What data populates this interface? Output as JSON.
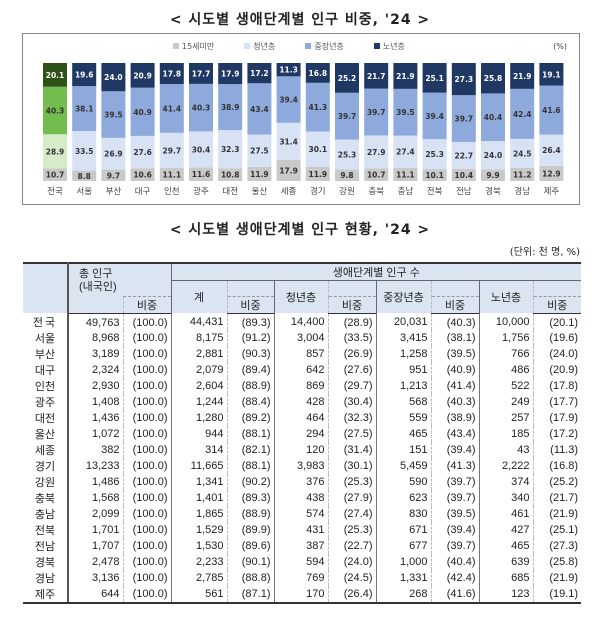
{
  "chart_title": "< 시도별 생애단계별 인구 비중, '24 >",
  "table_title": "< 시도별 생애단계별 인구 현황, '24 >",
  "chart_data": {
    "type": "bar",
    "stacked": true,
    "unit_label": "(%)",
    "categories": [
      "전국",
      "서울",
      "부산",
      "대구",
      "인천",
      "광주",
      "대전",
      "울산",
      "세종",
      "경기",
      "강원",
      "충북",
      "충남",
      "전북",
      "전남",
      "경북",
      "경남",
      "제주"
    ],
    "series": [
      {
        "name": "15세미만",
        "color": "#c9c9c9",
        "highlight": "#c9c9c9",
        "values": [
          10.7,
          8.8,
          9.7,
          10.6,
          11.1,
          11.6,
          10.8,
          11.9,
          17.9,
          11.9,
          9.8,
          10.7,
          11.1,
          10.1,
          10.4,
          9.9,
          11.2,
          12.9
        ]
      },
      {
        "name": "청년층",
        "color": "#d7e2f5",
        "highlight": "#d6ebc8",
        "values": [
          28.9,
          33.5,
          26.9,
          27.6,
          29.7,
          30.4,
          32.3,
          27.5,
          31.4,
          30.1,
          25.3,
          27.9,
          27.4,
          25.3,
          22.7,
          24.0,
          24.5,
          26.4
        ]
      },
      {
        "name": "중장년층",
        "color": "#8eaadd",
        "highlight": "#72bd4e",
        "values": [
          40.3,
          38.1,
          39.5,
          40.9,
          41.4,
          40.3,
          38.9,
          43.4,
          39.4,
          41.3,
          39.7,
          39.7,
          39.5,
          39.4,
          39.7,
          40.4,
          42.4,
          41.6
        ]
      },
      {
        "name": "노년층",
        "color": "#1f3864",
        "highlight": "#2f5219",
        "values": [
          20.1,
          19.6,
          24.0,
          20.9,
          17.8,
          17.7,
          17.9,
          17.2,
          11.3,
          16.8,
          25.2,
          21.7,
          21.9,
          25.1,
          27.3,
          25.8,
          21.9,
          19.1
        ]
      }
    ],
    "ylim": [
      0,
      100
    ],
    "legend": "top"
  },
  "table": {
    "unit": "(단위: 천 명, %)",
    "header": {
      "total": "총 인구\n(내국인)",
      "group": "생애단계별 인구 수",
      "sum": "계",
      "youth": "청년층",
      "middle": "중장년층",
      "senior": "노년층",
      "share": "비중"
    },
    "rows": [
      [
        "전국",
        "49,763",
        "(100.0)",
        "44,431",
        "(89.3)",
        "14,400",
        "(28.9)",
        "20,031",
        "(40.3)",
        "10,000",
        "(20.1)"
      ],
      [
        "서울",
        "8,968",
        "(100.0)",
        "8,175",
        "(91.2)",
        "3,004",
        "(33.5)",
        "3,415",
        "(38.1)",
        "1,756",
        "(19.6)"
      ],
      [
        "부산",
        "3,189",
        "(100.0)",
        "2,881",
        "(90.3)",
        "857",
        "(26.9)",
        "1,258",
        "(39.5)",
        "766",
        "(24.0)"
      ],
      [
        "대구",
        "2,324",
        "(100.0)",
        "2,079",
        "(89.4)",
        "642",
        "(27.6)",
        "951",
        "(40.9)",
        "486",
        "(20.9)"
      ],
      [
        "인천",
        "2,930",
        "(100.0)",
        "2,604",
        "(88.9)",
        "869",
        "(29.7)",
        "1,213",
        "(41.4)",
        "522",
        "(17.8)"
      ],
      [
        "광주",
        "1,408",
        "(100.0)",
        "1,244",
        "(88.4)",
        "428",
        "(30.4)",
        "568",
        "(40.3)",
        "249",
        "(17.7)"
      ],
      [
        "대전",
        "1,436",
        "(100.0)",
        "1,280",
        "(89.2)",
        "464",
        "(32.3)",
        "559",
        "(38.9)",
        "257",
        "(17.9)"
      ],
      [
        "울산",
        "1,072",
        "(100.0)",
        "944",
        "(88.1)",
        "294",
        "(27.5)",
        "465",
        "(43.4)",
        "185",
        "(17.2)"
      ],
      [
        "세종",
        "382",
        "(100.0)",
        "314",
        "(82.1)",
        "120",
        "(31.4)",
        "151",
        "(39.4)",
        "43",
        "(11.3)"
      ],
      [
        "경기",
        "13,233",
        "(100.0)",
        "11,665",
        "(88.1)",
        "3,983",
        "(30.1)",
        "5,459",
        "(41.3)",
        "2,222",
        "(16.8)"
      ],
      [
        "강원",
        "1,486",
        "(100.0)",
        "1,341",
        "(90.2)",
        "376",
        "(25.3)",
        "590",
        "(39.7)",
        "374",
        "(25.2)"
      ],
      [
        "충북",
        "1,568",
        "(100.0)",
        "1,401",
        "(89.3)",
        "438",
        "(27.9)",
        "623",
        "(39.7)",
        "340",
        "(21.7)"
      ],
      [
        "충남",
        "2,099",
        "(100.0)",
        "1,865",
        "(88.9)",
        "574",
        "(27.4)",
        "830",
        "(39.5)",
        "461",
        "(21.9)"
      ],
      [
        "전북",
        "1,701",
        "(100.0)",
        "1,529",
        "(89.9)",
        "431",
        "(25.3)",
        "671",
        "(39.4)",
        "427",
        "(25.1)"
      ],
      [
        "전남",
        "1,707",
        "(100.0)",
        "1,530",
        "(89.6)",
        "387",
        "(22.7)",
        "677",
        "(39.7)",
        "465",
        "(27.3)"
      ],
      [
        "경북",
        "2,478",
        "(100.0)",
        "2,233",
        "(90.1)",
        "594",
        "(24.0)",
        "1,000",
        "(40.4)",
        "639",
        "(25.8)"
      ],
      [
        "경남",
        "3,136",
        "(100.0)",
        "2,785",
        "(88.8)",
        "769",
        "(24.5)",
        "1,331",
        "(42.4)",
        "685",
        "(21.9)"
      ],
      [
        "제주",
        "644",
        "(100.0)",
        "561",
        "(87.1)",
        "170",
        "(26.4)",
        "268",
        "(41.6)",
        "123",
        "(19.1)"
      ]
    ]
  }
}
